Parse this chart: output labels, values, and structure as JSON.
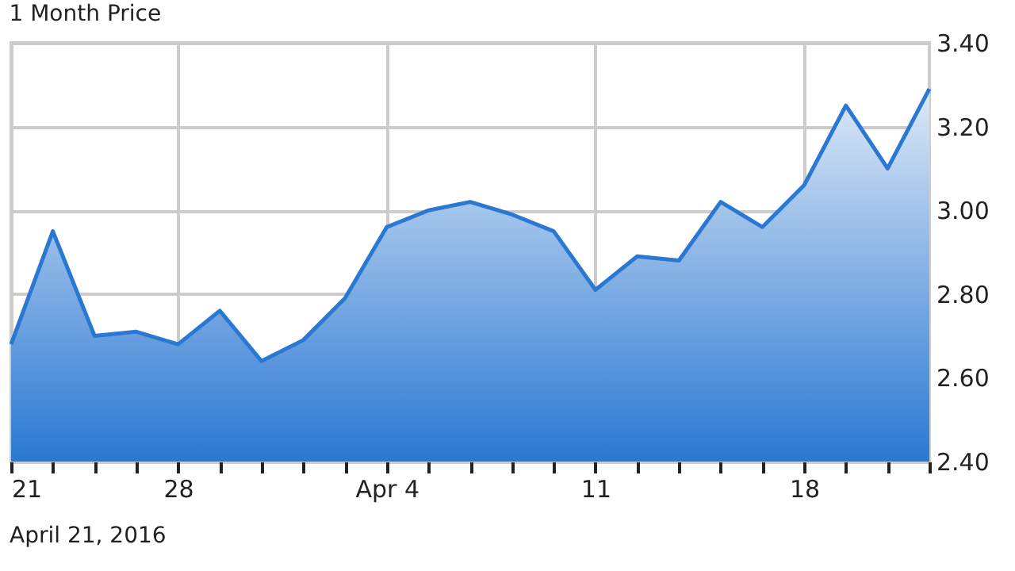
{
  "chart_data": {
    "type": "area",
    "title": "1 Month Price",
    "categories": [
      "21",
      null,
      null,
      null,
      "28",
      null,
      null,
      null,
      null,
      "Apr 4",
      null,
      null,
      null,
      null,
      "11",
      null,
      null,
      null,
      null,
      "18",
      null,
      null,
      null
    ],
    "series": [
      {
        "color": "#2a78d2",
        "values": [
          2.68,
          2.95,
          2.7,
          2.71,
          2.68,
          2.76,
          2.64,
          2.69,
          2.79,
          2.96,
          3.0,
          3.02,
          2.99,
          2.95,
          2.81,
          2.89,
          2.88,
          3.02,
          2.96,
          3.06,
          3.25,
          3.1,
          3.29
        ]
      }
    ],
    "ylim": [
      2.4,
      3.4
    ],
    "yticks": [
      {
        "value": 2.4,
        "label": "2.40"
      },
      {
        "value": 2.6,
        "label": "2.60"
      },
      {
        "value": 2.8,
        "label": "2.80"
      },
      {
        "value": 3.0,
        "label": "3.00"
      },
      {
        "value": 3.2,
        "label": "3.20"
      },
      {
        "value": 3.4,
        "label": "3.40"
      }
    ],
    "grid": true,
    "annotations": [
      "April 21, 2016"
    ]
  }
}
